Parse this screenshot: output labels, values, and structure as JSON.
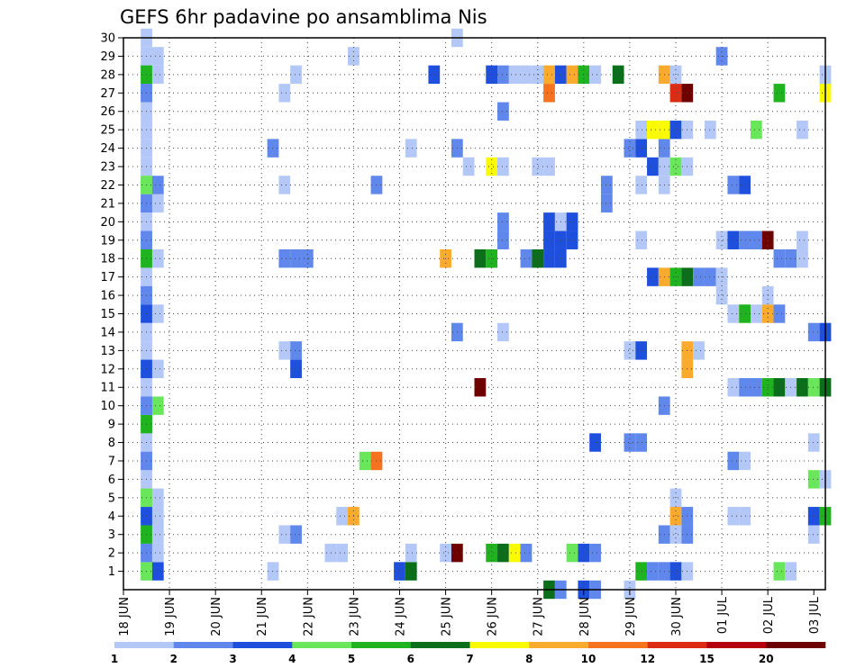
{
  "chart_data": {
    "type": "heatmap",
    "title": "GEFS 6hr padavine po ansamblima Nis",
    "x_tick_labels": [
      "18 JUN",
      "19 JUN",
      "20 JUN",
      "21 JUN",
      "22 JUN",
      "23 JUN",
      "24 JUN",
      "25 JUN",
      "26 JUN",
      "27 JUN",
      "28 JUN",
      "29 JUN",
      "30 JUN",
      "01 JUL",
      "02 JUL",
      "03 JUL"
    ],
    "y_tick_labels": [
      "1",
      "2",
      "3",
      "4",
      "5",
      "6",
      "7",
      "8",
      "9",
      "10",
      "11",
      "12",
      "13",
      "14",
      "15",
      "16",
      "17",
      "18",
      "19",
      "20",
      "21",
      "22",
      "23",
      "24",
      "25",
      "26",
      "27",
      "28",
      "29",
      "30"
    ],
    "grid": true,
    "colorbar": {
      "labels": [
        "1",
        "2",
        "3",
        "4",
        "5",
        "6",
        "7",
        "8",
        "10",
        "12",
        "15",
        "20"
      ],
      "colors": [
        "#b4c8f7",
        "#5f87ec",
        "#1f4fdd",
        "#6ae65a",
        "#1fb41f",
        "#0a6e1a",
        "#fafa00",
        "#faaa2d",
        "#f5721e",
        "#dc2d14",
        "#b4000f",
        "#6e0000"
      ]
    },
    "cells": [
      [
        1,
        1,
        "#b4c8f7"
      ],
      [
        1,
        2,
        "#b4c8f7"
      ],
      [
        1,
        3,
        "#b4c8f7"
      ],
      [
        1,
        4,
        "#b4c8f7"
      ],
      [
        1,
        5,
        "#b4c8f7"
      ],
      [
        1,
        6,
        "#b4c8f7"
      ],
      [
        1,
        7,
        "#b4c8f7"
      ],
      [
        1,
        8,
        "#b4c8f7"
      ],
      [
        1,
        9,
        "#b4c8f7"
      ],
      [
        1,
        10,
        "#b4c8f7"
      ],
      [
        1,
        11,
        "#b4c8f7"
      ],
      [
        1,
        12,
        "#b4c8f7"
      ],
      [
        1,
        13,
        "#b4c8f7"
      ],
      [
        1,
        14,
        "#b4c8f7"
      ],
      [
        1,
        15,
        "#b4c8f7"
      ],
      [
        1,
        16,
        "#b4c8f7"
      ],
      [
        1,
        17,
        "#b4c8f7"
      ],
      [
        1,
        18,
        "#b4c8f7"
      ],
      [
        1,
        19,
        "#b4c8f7"
      ],
      [
        1,
        20,
        "#b4c8f7"
      ],
      [
        1,
        21,
        "#b4c8f7"
      ],
      [
        1,
        22,
        "#b4c8f7"
      ],
      [
        1,
        23,
        "#b4c8f7"
      ],
      [
        1,
        24,
        "#b4c8f7"
      ],
      [
        1,
        25,
        "#b4c8f7"
      ],
      [
        1,
        26,
        "#b4c8f7"
      ],
      [
        1,
        27,
        "#b4c8f7"
      ],
      [
        1,
        28,
        "#b4c8f7"
      ],
      [
        1,
        29,
        "#b4c8f7"
      ],
      [
        1,
        30,
        "#b4c8f7"
      ],
      [
        1,
        1,
        "#6ae65a"
      ],
      [
        1,
        2,
        "#5f87ec"
      ],
      [
        1,
        3,
        "#1fb41f"
      ],
      [
        1,
        4,
        "#1f4fdd"
      ],
      [
        1,
        5,
        "#6ae65a"
      ],
      [
        1,
        7,
        "#5f87ec"
      ],
      [
        1,
        9,
        "#1fb41f"
      ],
      [
        1,
        10,
        "#5f87ec"
      ],
      [
        1,
        12,
        "#1f4fdd"
      ],
      [
        1,
        15,
        "#1f4fdd"
      ],
      [
        1,
        16,
        "#5f87ec"
      ],
      [
        1,
        18,
        "#1fb41f"
      ],
      [
        1,
        19,
        "#5f87ec"
      ],
      [
        1,
        21,
        "#5f87ec"
      ],
      [
        1,
        22,
        "#6ae65a"
      ],
      [
        1,
        27,
        "#5f87ec"
      ],
      [
        1,
        28,
        "#1fb41f"
      ],
      [
        2,
        1,
        "#1f4fdd"
      ],
      [
        2,
        2,
        "#b4c8f7"
      ],
      [
        2,
        3,
        "#b4c8f7"
      ],
      [
        2,
        4,
        "#b4c8f7"
      ],
      [
        2,
        5,
        "#b4c8f7"
      ],
      [
        2,
        10,
        "#6ae65a"
      ],
      [
        2,
        12,
        "#b4c8f7"
      ],
      [
        2,
        15,
        "#b4c8f7"
      ],
      [
        2,
        18,
        "#b4c8f7"
      ],
      [
        2,
        21,
        "#b4c8f7"
      ],
      [
        2,
        22,
        "#5f87ec"
      ],
      [
        2,
        28,
        "#b4c8f7"
      ],
      [
        2,
        29,
        "#b4c8f7"
      ],
      [
        12,
        1,
        "#b4c8f7"
      ],
      [
        12,
        24,
        "#5f87ec"
      ],
      [
        13,
        3,
        "#b4c8f7"
      ],
      [
        13,
        13,
        "#b4c8f7"
      ],
      [
        13,
        18,
        "#5f87ec"
      ],
      [
        13,
        22,
        "#b4c8f7"
      ],
      [
        13,
        27,
        "#b4c8f7"
      ],
      [
        14,
        3,
        "#5f87ec"
      ],
      [
        14,
        12,
        "#1f4fdd"
      ],
      [
        14,
        13,
        "#5f87ec"
      ],
      [
        14,
        18,
        "#5f87ec"
      ],
      [
        14,
        28,
        "#b4c8f7"
      ],
      [
        15,
        18,
        "#5f87ec"
      ],
      [
        17,
        2,
        "#b4c8f7"
      ],
      [
        18,
        2,
        "#b4c8f7"
      ],
      [
        18,
        4,
        "#b4c8f7"
      ],
      [
        19,
        4,
        "#faaa2d"
      ],
      [
        19,
        29,
        "#b4c8f7"
      ],
      [
        20,
        7,
        "#6ae65a"
      ],
      [
        21,
        7,
        "#f5721e"
      ],
      [
        21,
        22,
        "#5f87ec"
      ],
      [
        23,
        1,
        "#1f4fdd"
      ],
      [
        24,
        1,
        "#0a6e1a"
      ],
      [
        24,
        2,
        "#b4c8f7"
      ],
      [
        24,
        24,
        "#b4c8f7"
      ],
      [
        26,
        28,
        "#1f4fdd"
      ],
      [
        27,
        2,
        "#b4c8f7"
      ],
      [
        27,
        18,
        "#faaa2d"
      ],
      [
        28,
        2,
        "#6e0000"
      ],
      [
        28,
        14,
        "#5f87ec"
      ],
      [
        28,
        24,
        "#5f87ec"
      ],
      [
        28,
        30,
        "#b4c8f7"
      ],
      [
        29,
        23,
        "#b4c8f7"
      ],
      [
        30,
        11,
        "#6e0000"
      ],
      [
        30,
        18,
        "#0a6e1a"
      ],
      [
        31,
        2,
        "#1fb41f"
      ],
      [
        31,
        18,
        "#1fb41f"
      ],
      [
        31,
        23,
        "#fafa00"
      ],
      [
        31,
        28,
        "#1f4fdd"
      ],
      [
        32,
        2,
        "#0a6e1a"
      ],
      [
        32,
        14,
        "#b4c8f7"
      ],
      [
        32,
        19,
        "#5f87ec"
      ],
      [
        32,
        20,
        "#5f87ec"
      ],
      [
        32,
        23,
        "#b4c8f7"
      ],
      [
        32,
        26,
        "#5f87ec"
      ],
      [
        32,
        28,
        "#5f87ec"
      ],
      [
        33,
        2,
        "#fafa00"
      ],
      [
        33,
        28,
        "#b4c8f7"
      ],
      [
        34,
        2,
        "#5f87ec"
      ],
      [
        34,
        18,
        "#5f87ec"
      ],
      [
        34,
        28,
        "#b4c8f7"
      ],
      [
        35,
        18,
        "#0a6e1a"
      ],
      [
        35,
        23,
        "#b4c8f7"
      ],
      [
        35,
        28,
        "#b4c8f7"
      ],
      [
        36,
        0,
        "#0a6e1a"
      ],
      [
        36,
        19,
        "#1f4fdd"
      ],
      [
        36,
        20,
        "#1f4fdd"
      ],
      [
        36,
        18,
        "#1f4fdd"
      ],
      [
        36,
        23,
        "#b4c8f7"
      ],
      [
        36,
        27,
        "#f5721e"
      ],
      [
        36,
        28,
        "#faaa2d"
      ],
      [
        37,
        0,
        "#5f87ec"
      ],
      [
        37,
        18,
        "#1f4fdd"
      ],
      [
        37,
        19,
        "#1f4fdd"
      ],
      [
        37,
        20,
        "#b4c8f7"
      ],
      [
        37,
        28,
        "#1f4fdd"
      ],
      [
        38,
        2,
        "#6ae65a"
      ],
      [
        38,
        19,
        "#1f4fdd"
      ],
      [
        38,
        20,
        "#1f4fdd"
      ],
      [
        38,
        28,
        "#faaa2d"
      ],
      [
        39,
        0,
        "#1f4fdd"
      ],
      [
        39,
        2,
        "#1f4fdd"
      ],
      [
        39,
        28,
        "#1fb41f"
      ],
      [
        40,
        0,
        "#5f87ec"
      ],
      [
        40,
        2,
        "#5f87ec"
      ],
      [
        40,
        8,
        "#1f4fdd"
      ],
      [
        40,
        28,
        "#b4c8f7"
      ],
      [
        41,
        21,
        "#5f87ec"
      ],
      [
        41,
        22,
        "#5f87ec"
      ],
      [
        42,
        28,
        "#0a6e1a"
      ],
      [
        43,
        0,
        "#b4c8f7"
      ],
      [
        43,
        8,
        "#5f87ec"
      ],
      [
        43,
        13,
        "#b4c8f7"
      ],
      [
        43,
        24,
        "#5f87ec"
      ],
      [
        44,
        1,
        "#1fb41f"
      ],
      [
        44,
        8,
        "#5f87ec"
      ],
      [
        44,
        13,
        "#1f4fdd"
      ],
      [
        44,
        19,
        "#b4c8f7"
      ],
      [
        44,
        22,
        "#b4c8f7"
      ],
      [
        44,
        24,
        "#1f4fdd"
      ],
      [
        44,
        25,
        "#b4c8f7"
      ],
      [
        45,
        1,
        "#5f87ec"
      ],
      [
        45,
        17,
        "#1f4fdd"
      ],
      [
        45,
        23,
        "#1f4fdd"
      ],
      [
        45,
        25,
        "#fafa00"
      ],
      [
        46,
        1,
        "#5f87ec"
      ],
      [
        46,
        3,
        "#5f87ec"
      ],
      [
        46,
        10,
        "#5f87ec"
      ],
      [
        46,
        17,
        "#faaa2d"
      ],
      [
        46,
        22,
        "#b4c8f7"
      ],
      [
        46,
        23,
        "#b4c8f7"
      ],
      [
        46,
        24,
        "#5f87ec"
      ],
      [
        46,
        25,
        "#fafa00"
      ],
      [
        46,
        28,
        "#faaa2d"
      ],
      [
        47,
        1,
        "#1f4fdd"
      ],
      [
        47,
        3,
        "#b4c8f7"
      ],
      [
        47,
        4,
        "#faaa2d"
      ],
      [
        47,
        5,
        "#b4c8f7"
      ],
      [
        47,
        17,
        "#1fb41f"
      ],
      [
        47,
        23,
        "#6ae65a"
      ],
      [
        47,
        25,
        "#1f4fdd"
      ],
      [
        47,
        27,
        "#dc2d14"
      ],
      [
        47,
        28,
        "#b4c8f7"
      ],
      [
        48,
        1,
        "#b4c8f7"
      ],
      [
        48,
        3,
        "#5f87ec"
      ],
      [
        48,
        4,
        "#5f87ec"
      ],
      [
        48,
        12,
        "#faaa2d"
      ],
      [
        48,
        13,
        "#faaa2d"
      ],
      [
        48,
        17,
        "#0a6e1a"
      ],
      [
        48,
        23,
        "#b4c8f7"
      ],
      [
        48,
        25,
        "#b4c8f7"
      ],
      [
        48,
        27,
        "#6e0000"
      ],
      [
        49,
        13,
        "#b4c8f7"
      ],
      [
        49,
        17,
        "#5f87ec"
      ],
      [
        50,
        17,
        "#5f87ec"
      ],
      [
        50,
        25,
        "#b4c8f7"
      ],
      [
        51,
        16,
        "#b4c8f7"
      ],
      [
        51,
        17,
        "#b4c8f7"
      ],
      [
        51,
        19,
        "#b4c8f7"
      ],
      [
        51,
        29,
        "#5f87ec"
      ],
      [
        52,
        4,
        "#b4c8f7"
      ],
      [
        52,
        7,
        "#5f87ec"
      ],
      [
        52,
        11,
        "#b4c8f7"
      ],
      [
        52,
        15,
        "#b4c8f7"
      ],
      [
        52,
        19,
        "#1f4fdd"
      ],
      [
        52,
        22,
        "#5f87ec"
      ],
      [
        53,
        4,
        "#b4c8f7"
      ],
      [
        53,
        7,
        "#b4c8f7"
      ],
      [
        53,
        11,
        "#5f87ec"
      ],
      [
        53,
        15,
        "#1fb41f"
      ],
      [
        53,
        19,
        "#5f87ec"
      ],
      [
        53,
        22,
        "#1f4fdd"
      ],
      [
        54,
        11,
        "#5f87ec"
      ],
      [
        54,
        15,
        "#b4c8f7"
      ],
      [
        54,
        19,
        "#5f87ec"
      ],
      [
        54,
        25,
        "#6ae65a"
      ],
      [
        55,
        11,
        "#1fb41f"
      ],
      [
        55,
        15,
        "#faaa2d"
      ],
      [
        55,
        16,
        "#b4c8f7"
      ],
      [
        55,
        19,
        "#6e0000"
      ],
      [
        56,
        1,
        "#6ae65a"
      ],
      [
        56,
        11,
        "#0a6e1a"
      ],
      [
        56,
        15,
        "#5f87ec"
      ],
      [
        56,
        18,
        "#5f87ec"
      ],
      [
        56,
        27,
        "#1fb41f"
      ],
      [
        57,
        1,
        "#b4c8f7"
      ],
      [
        57,
        11,
        "#b4c8f7"
      ],
      [
        57,
        18,
        "#5f87ec"
      ],
      [
        58,
        11,
        "#0a6e1a"
      ],
      [
        58,
        18,
        "#b4c8f7"
      ],
      [
        58,
        19,
        "#b4c8f7"
      ],
      [
        58,
        25,
        "#b4c8f7"
      ],
      [
        59,
        3,
        "#b4c8f7"
      ],
      [
        59,
        4,
        "#1f4fdd"
      ],
      [
        59,
        8,
        "#b4c8f7"
      ],
      [
        59,
        11,
        "#6ae65a"
      ],
      [
        59,
        14,
        "#5f87ec"
      ],
      [
        59,
        6,
        "#6ae65a"
      ],
      [
        60,
        4,
        "#1fb41f"
      ],
      [
        60,
        6,
        "#b4c8f7"
      ],
      [
        60,
        11,
        "#0a6e1a"
      ],
      [
        60,
        14,
        "#1f4fdd"
      ],
      [
        60,
        27,
        "#fafa00"
      ],
      [
        60,
        28,
        "#b4c8f7"
      ]
    ]
  }
}
